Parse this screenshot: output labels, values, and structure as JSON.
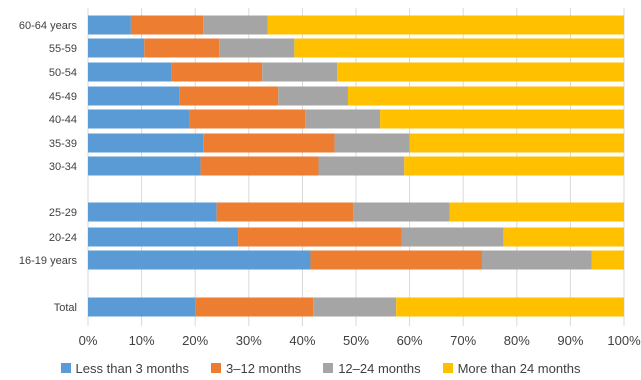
{
  "chart_data": {
    "type": "bar",
    "orientation": "horizontal",
    "stacked": "percent",
    "categories": [
      "60-64 years",
      "55-59",
      "50-54",
      "45-49",
      "40-44",
      "35-39",
      "30-34",
      "25-29",
      "20-24",
      "16-19 years",
      "Total"
    ],
    "series": [
      {
        "name": "Less than 3 months",
        "color": "#5B9BD5",
        "values": [
          8,
          10.5,
          15.5,
          17,
          19,
          21.5,
          21,
          24,
          28,
          41.5,
          20
        ]
      },
      {
        "name": "3–12 months",
        "color": "#ED7D31",
        "values": [
          13.5,
          14,
          17,
          18.5,
          21.5,
          24.5,
          22,
          25.5,
          30.5,
          32,
          22
        ]
      },
      {
        "name": "12–24 months",
        "color": "#A5A5A5",
        "values": [
          12,
          14,
          14,
          13,
          14,
          14,
          16,
          18,
          19,
          20.5,
          15.5
        ]
      },
      {
        "name": "More than 24 months",
        "color": "#FFC000",
        "values": [
          66.5,
          61.5,
          53.5,
          51.5,
          45.5,
          40,
          41,
          32.5,
          22.5,
          6,
          42.5
        ]
      }
    ],
    "xlim": [
      0,
      100
    ],
    "x_ticks": [
      "0%",
      "10%",
      "20%",
      "30%",
      "40%",
      "50%",
      "60%",
      "70%",
      "80%",
      "90%",
      "100%"
    ],
    "grid": true,
    "legend_position": "bottom"
  }
}
